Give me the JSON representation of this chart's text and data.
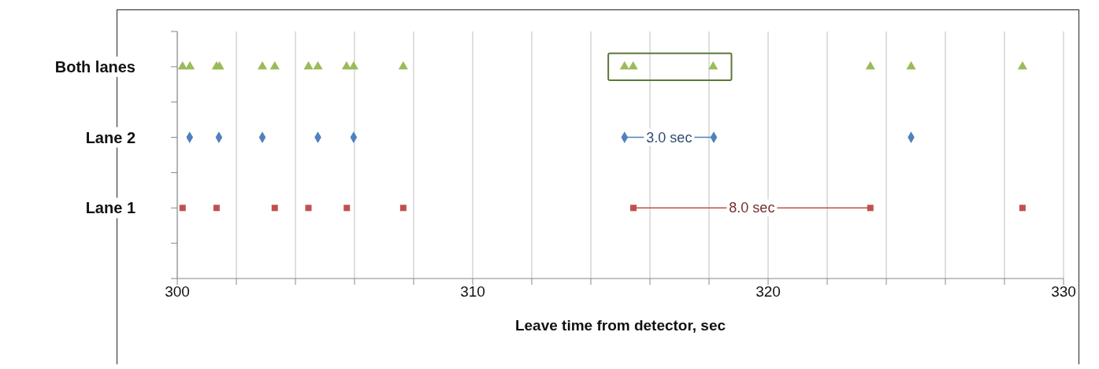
{
  "chart_data": {
    "type": "scatter",
    "orientation": "horizontal",
    "xlabel": "Leave time from detector, sec",
    "categories": [
      "Both lanes",
      "Lane 2",
      "Lane 1"
    ],
    "xlim": [
      300,
      330
    ],
    "xticks": [
      300,
      {
        "value": 302,
        "label": null
      },
      {
        "value": 304,
        "label": null
      },
      {
        "value": 306,
        "label": null
      },
      {
        "value": 308,
        "label": null
      },
      310,
      {
        "value": 312,
        "label": null
      },
      {
        "value": 314,
        "label": null
      },
      {
        "value": 316,
        "label": null
      },
      {
        "value": 318,
        "label": null
      },
      320,
      {
        "value": 322,
        "label": null
      },
      {
        "value": 324,
        "label": null
      },
      {
        "value": 326,
        "label": null
      },
      {
        "value": 328,
        "label": null
      },
      330
    ],
    "grid": "x",
    "legend": false,
    "series": [
      {
        "type": "line",
        "color": "#4f81bd",
        "marker": "none",
        "x": [
          "Lane 2",
          "Lane 2"
        ],
        "values": [
          315.14,
          318.16
        ]
      },
      {
        "type": "line",
        "color": "#c0504d",
        "marker": "none",
        "x": [
          "Lane 1",
          "Lane 1"
        ],
        "values": [
          315.44,
          323.46
        ]
      },
      {
        "color": "#9bbb59",
        "marker": "triangle",
        "x": [
          "Both lanes",
          "Both lanes",
          "Both lanes",
          "Both lanes",
          "Both lanes",
          "Both lanes",
          "Both lanes",
          "Both lanes",
          "Both lanes",
          "Both lanes",
          "Both lanes",
          "Both lanes",
          "Both lanes",
          "Both lanes",
          "Both lanes",
          "Both lanes",
          "Both lanes"
        ],
        "values": [
          300.18,
          300.43,
          301.33,
          301.43,
          302.88,
          303.3,
          304.44,
          304.76,
          305.73,
          305.97,
          307.65,
          315.14,
          315.43,
          318.14,
          323.46,
          324.84,
          328.61
        ]
      },
      {
        "color": "#4f81bd",
        "marker": "diamond",
        "x": [
          "Lane 2",
          "Lane 2",
          "Lane 2",
          "Lane 2",
          "Lane 2",
          "Lane 2",
          "Lane 2",
          "Lane 2"
        ],
        "values": [
          300.42,
          301.41,
          302.88,
          304.76,
          305.97,
          315.14,
          318.16,
          324.84
        ]
      },
      {
        "color": "#c0504d",
        "marker": "square",
        "x": [
          "Lane 1",
          "Lane 1",
          "Lane 1",
          "Lane 1",
          "Lane 1",
          "Lane 1",
          "Lane 1",
          "Lane 1",
          "Lane 1"
        ],
        "values": [
          300.18,
          301.33,
          303.3,
          304.44,
          305.74,
          307.65,
          315.44,
          323.46,
          328.61
        ]
      }
    ],
    "annotations": [
      {
        "text": "3.0 sec",
        "x": 316.65,
        "y": "Lane 2"
      },
      {
        "text": "8.0 sec",
        "x": 319.45,
        "y": "Lane 1"
      }
    ]
  }
}
